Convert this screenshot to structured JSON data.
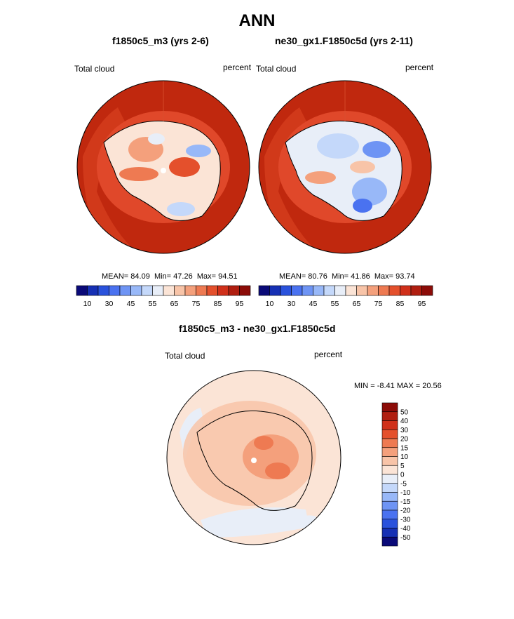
{
  "figure_title": "ANN",
  "panels": [
    {
      "id": "left",
      "title": "f1850c5_m3 (yrs 2-6)",
      "field_label": "Total cloud",
      "units_label": "percent",
      "stats": {
        "mean_label": "MEAN=",
        "mean": "84.09",
        "min_label": "Min=",
        "min": "47.26",
        "max_label": "Max=",
        "max": "94.51"
      }
    },
    {
      "id": "right",
      "title": "ne30_gx1.F1850c5d (yrs 2-11)",
      "field_label": "Total cloud",
      "units_label": "percent",
      "stats": {
        "mean_label": "MEAN=",
        "mean": "80.76",
        "min_label": "Min=",
        "min": "41.86",
        "max_label": "Max=",
        "max": "93.74"
      }
    }
  ],
  "abs_colorbar": {
    "tick_labels": [
      "10",
      "30",
      "45",
      "55",
      "65",
      "75",
      "85",
      "95"
    ],
    "colors": [
      "#0a0a78",
      "#1630b4",
      "#2a52dc",
      "#4a72f0",
      "#6e94f4",
      "#98b8f8",
      "#c4d8fa",
      "#e8eef8",
      "#fbe4d6",
      "#f8c4a8",
      "#f4a07c",
      "#ee7a52",
      "#e4502c",
      "#d0301a",
      "#b01e10",
      "#8c0c08"
    ]
  },
  "diff_panel": {
    "title": "f1850c5_m3 - ne30_gx1.F1850c5d",
    "field_label": "Total cloud",
    "units_label": "percent",
    "minmax_text": "MIN =  -8.41 MAX =  20.56"
  },
  "diff_colorbar": {
    "tick_labels": [
      "50",
      "40",
      "30",
      "20",
      "15",
      "10",
      "5",
      "0",
      "-5",
      "-10",
      "-15",
      "-20",
      "-30",
      "-40",
      "-50"
    ],
    "colors": [
      "#8c0c08",
      "#b01e10",
      "#d0301a",
      "#e4502c",
      "#ee7a52",
      "#f4a07c",
      "#f8c4a8",
      "#fbe4d6",
      "#e8eef8",
      "#c4d8fa",
      "#98b8f8",
      "#6e94f4",
      "#4a72f0",
      "#2a52dc",
      "#1630b4",
      "#0a0a78"
    ]
  }
}
